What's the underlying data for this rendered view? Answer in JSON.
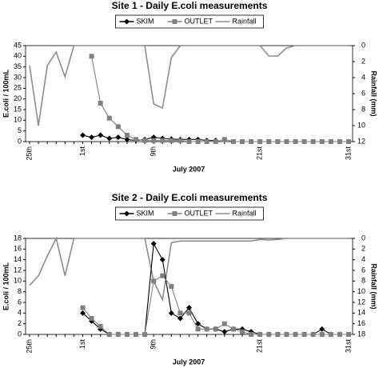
{
  "chart_data": [
    {
      "type": "line",
      "title": "Site 1 - Daily E.coli measurements",
      "x_label": "July 2007",
      "y_label": "E.coli / 100mL",
      "y2_label": "Rainfall (mm)",
      "categories": [
        "25th",
        null,
        null,
        null,
        null,
        null,
        "1st",
        null,
        null,
        null,
        null,
        null,
        null,
        null,
        "9th",
        null,
        null,
        null,
        null,
        null,
        null,
        null,
        null,
        null,
        null,
        null,
        "21st",
        null,
        null,
        null,
        null,
        null,
        null,
        null,
        null,
        null,
        "31st"
      ],
      "ylim": [
        0,
        45
      ],
      "yticks": [
        0,
        5,
        10,
        15,
        20,
        25,
        30,
        35,
        40,
        45
      ],
      "y2lim": [
        12,
        0
      ],
      "y2ticks": [
        0,
        2,
        4,
        6,
        8,
        10,
        12
      ],
      "grid": false,
      "legend": "top",
      "series": [
        {
          "name": "SKIM",
          "color": "#000000",
          "marker": "diamond",
          "values": [
            null,
            null,
            null,
            null,
            null,
            null,
            3,
            2,
            3,
            1.5,
            2,
            1,
            0.5,
            1,
            2,
            1.5,
            1.2,
            1,
            1,
            1,
            0.5,
            0.5,
            null,
            null,
            null,
            null,
            null,
            null,
            null,
            null,
            null,
            null,
            null,
            null,
            null,
            null,
            null
          ]
        },
        {
          "name": "OUTLET",
          "color": "#808080",
          "marker": "square",
          "values": [
            null,
            null,
            null,
            null,
            null,
            null,
            null,
            40,
            18,
            11,
            7,
            3,
            1,
            0.5,
            0.5,
            0.5,
            0.5,
            0.5,
            0,
            0,
            0,
            0,
            1,
            0,
            0,
            0,
            0,
            0,
            0,
            0,
            0,
            0,
            0,
            0,
            0,
            0,
            0
          ]
        },
        {
          "name": "Rainfall",
          "color": "#8c8c8c",
          "marker": "none",
          "axis": "y2",
          "values": [
            2.5,
            10,
            2.5,
            0.8,
            3.9,
            0,
            0,
            0,
            0,
            0,
            0,
            0,
            0,
            0,
            7.3,
            7.8,
            1.5,
            0,
            0,
            0,
            0,
            0,
            0,
            0,
            0,
            0,
            0,
            1.3,
            1.3,
            0.3,
            0,
            0,
            0,
            0,
            0,
            0,
            0
          ]
        }
      ]
    },
    {
      "type": "line",
      "title": "Site 2 - Daily E.coli measurements",
      "x_label": "July 2007",
      "y_label": "E.coli / 100mL",
      "y2_label": "Rainfall (mm)",
      "categories": [
        "25th",
        null,
        null,
        null,
        null,
        null,
        "1st",
        null,
        null,
        null,
        null,
        null,
        null,
        null,
        "9th",
        null,
        null,
        null,
        null,
        null,
        null,
        null,
        null,
        null,
        null,
        null,
        "21st",
        null,
        null,
        null,
        null,
        null,
        null,
        null,
        null,
        null,
        "31st"
      ],
      "ylim": [
        0,
        18
      ],
      "yticks": [
        0,
        2,
        4,
        6,
        8,
        10,
        12,
        14,
        16,
        18
      ],
      "y2lim": [
        18,
        0
      ],
      "y2ticks": [
        0,
        2,
        4,
        6,
        8,
        10,
        12,
        14,
        16,
        18
      ],
      "grid": false,
      "legend": "top",
      "series": [
        {
          "name": "SKIM",
          "color": "#000000",
          "marker": "diamond",
          "values": [
            null,
            null,
            null,
            null,
            null,
            null,
            4,
            2.5,
            1,
            0,
            0,
            0,
            0,
            0,
            17,
            14,
            4,
            3,
            5,
            2,
            1,
            1,
            0.5,
            1,
            1,
            0.5,
            0,
            0,
            0,
            0,
            0,
            0,
            0,
            1,
            0,
            0,
            null
          ]
        },
        {
          "name": "OUTLET",
          "color": "#808080",
          "marker": "square",
          "values": [
            null,
            null,
            null,
            null,
            null,
            null,
            5,
            3,
            1.5,
            0,
            0,
            0,
            0,
            0,
            10,
            11,
            9,
            4,
            4,
            1,
            1,
            1,
            2,
            1,
            0.5,
            0,
            0,
            0,
            0,
            0,
            0,
            0,
            0,
            0,
            0,
            0,
            0
          ]
        },
        {
          "name": "Rainfall",
          "color": "#8c8c8c",
          "marker": "none",
          "axis": "y2",
          "values": [
            8.8,
            7,
            3.3,
            0,
            7,
            0,
            0,
            0,
            0,
            0,
            0,
            0,
            0,
            0,
            8,
            11.5,
            0.8,
            0.5,
            0.5,
            0.5,
            0.5,
            0.5,
            0.5,
            0.5,
            0.5,
            0.5,
            0.2,
            0.3,
            0.2,
            0,
            0,
            0,
            0,
            0,
            0,
            0,
            0
          ]
        }
      ]
    }
  ]
}
